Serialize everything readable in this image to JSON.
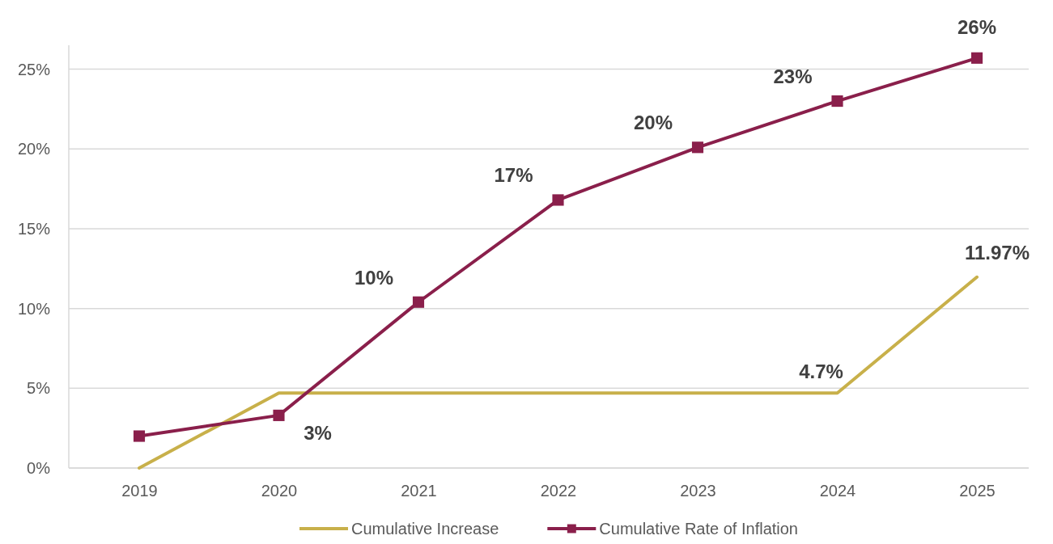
{
  "chart_data": {
    "type": "line",
    "categories": [
      "2019",
      "2020",
      "2021",
      "2022",
      "2023",
      "2024",
      "2025"
    ],
    "ylim": [
      0,
      26.5
    ],
    "yticks": [
      {
        "value": 0,
        "label": "0%"
      },
      {
        "value": 5,
        "label": "5%"
      },
      {
        "value": 10,
        "label": "10%"
      },
      {
        "value": 15,
        "label": "15%"
      },
      {
        "value": 20,
        "label": "20%"
      },
      {
        "value": 25,
        "label": "25%"
      }
    ],
    "grid": "y",
    "legend": "bottom",
    "series": [
      {
        "name": "Cumulative Increase",
        "color": "#c8b04a",
        "marker": "none",
        "values": [
          0,
          4.7,
          4.7,
          4.7,
          4.7,
          4.7,
          11.97
        ],
        "value_labels": [
          null,
          null,
          null,
          null,
          null,
          "4.7%",
          "11.97%"
        ]
      },
      {
        "name": "Cumulative Rate of Inflation",
        "color": "#8a1f4b",
        "marker": "square",
        "values": [
          2.0,
          3.3,
          10.4,
          16.8,
          20.1,
          23.0,
          25.7
        ],
        "value_labels": [
          null,
          "3%",
          "10%",
          "17%",
          "20%",
          "23%",
          "26%"
        ]
      }
    ]
  }
}
